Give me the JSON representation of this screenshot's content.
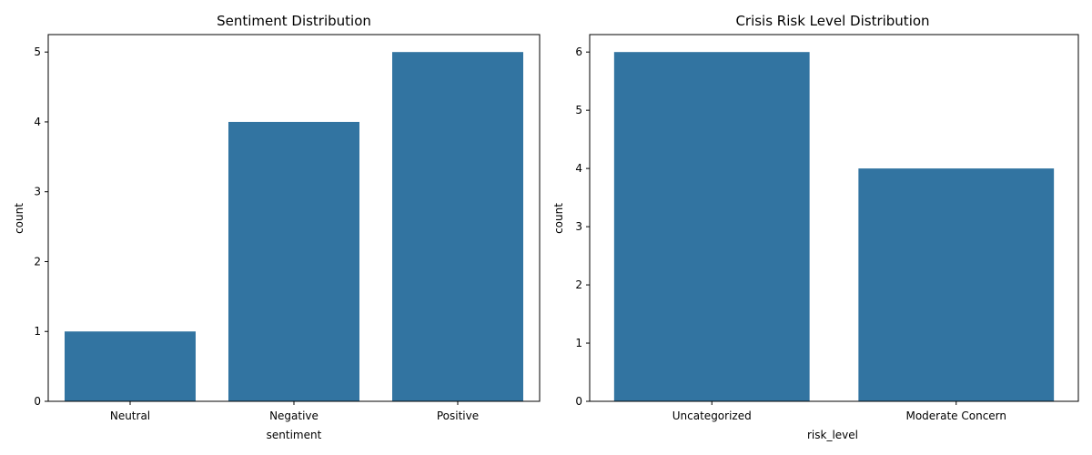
{
  "chart_data": [
    {
      "type": "bar",
      "title": "Sentiment Distribution",
      "xlabel": "sentiment",
      "ylabel": "count",
      "categories": [
        "Neutral",
        "Negative",
        "Positive"
      ],
      "values": [
        1,
        4,
        5
      ],
      "ylim": [
        0,
        5.25
      ],
      "yticks": [
        0,
        1,
        2,
        3,
        4,
        5
      ],
      "grid": false,
      "bar_color": "#3274a1"
    },
    {
      "type": "bar",
      "title": "Crisis Risk Level Distribution",
      "xlabel": "risk_level",
      "ylabel": "count",
      "categories": [
        "Uncategorized",
        "Moderate Concern"
      ],
      "values": [
        6,
        4
      ],
      "ylim": [
        0,
        6.3
      ],
      "yticks": [
        0,
        1,
        2,
        3,
        4,
        5,
        6
      ],
      "grid": false,
      "bar_color": "#3274a1"
    }
  ]
}
